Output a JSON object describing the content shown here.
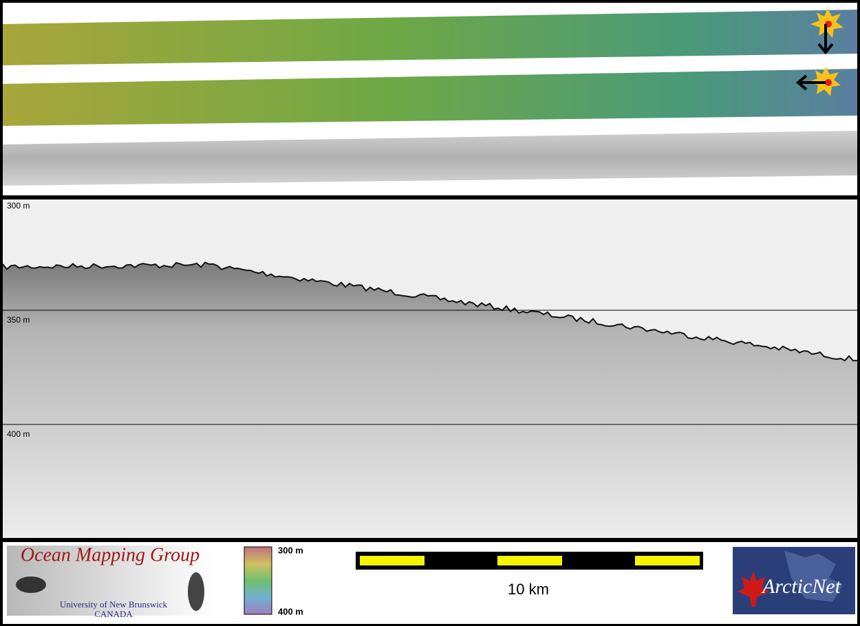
{
  "profile": {
    "depth_labels": [
      "300 m",
      "350 m",
      "400 m"
    ]
  },
  "legend": {
    "logo_left": {
      "title": "Ocean Mapping Group",
      "line1": "University of New Brunswick",
      "line2": "CANADA"
    },
    "colorbar": {
      "top": "300 m",
      "bottom": "400 m"
    },
    "scale_bar": {
      "label": "10 km"
    },
    "logo_right": {
      "text": "ArcticNet"
    }
  }
}
